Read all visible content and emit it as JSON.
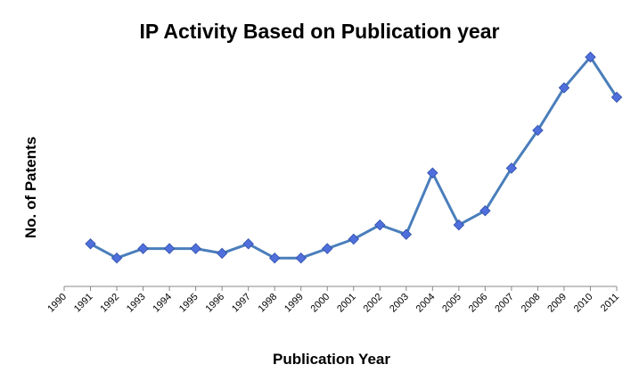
{
  "chart_data": {
    "type": "line",
    "title": "IP Activity Based on Publication year",
    "xlabel": "Publication Year",
    "ylabel": "No. of Patents",
    "categories": [
      "1990",
      "1991",
      "1992",
      "1993",
      "1994",
      "1995",
      "1996",
      "1997",
      "1998",
      "1999",
      "2000",
      "2001",
      "2002",
      "2003",
      "2004",
      "2005",
      "2006",
      "2007",
      "2008",
      "2009",
      "2010",
      "2011"
    ],
    "series": [
      {
        "name": "Patents",
        "color": "#4a7ebb",
        "marker_color": "#4f6fdc",
        "values": [
          null,
          9,
          6,
          8,
          8,
          8,
          7,
          9,
          6,
          6,
          8,
          10,
          13,
          11,
          24,
          13,
          16,
          25,
          33,
          42,
          48.5,
          40
        ]
      }
    ],
    "ylim": [
      0,
      50
    ],
    "grid": false,
    "legend": "none"
  }
}
